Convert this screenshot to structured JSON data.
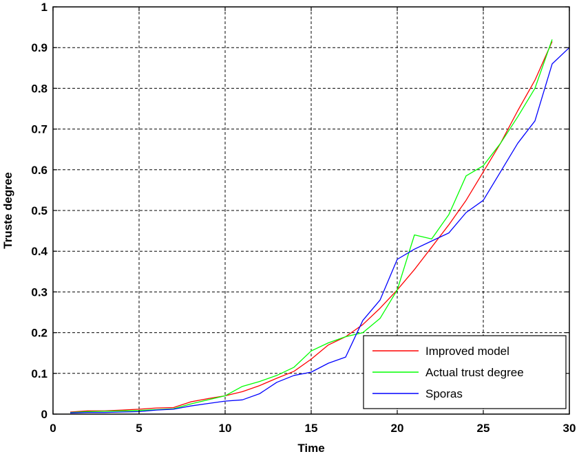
{
  "chart_data": {
    "type": "line",
    "title": "",
    "xlabel": "Time",
    "ylabel": "Truste degree",
    "xlim": [
      0,
      30
    ],
    "ylim": [
      0,
      1
    ],
    "xticks": [
      "0",
      "5",
      "10",
      "15",
      "20",
      "25",
      "30"
    ],
    "yticks": [
      "0",
      "0.1",
      "0.2",
      "0.3",
      "0.4",
      "0.5",
      "0.6",
      "0.7",
      "0.8",
      "0.9",
      "1"
    ],
    "grid": true,
    "legend_position": "bottom-right",
    "x": [
      1,
      2,
      3,
      4,
      5,
      6,
      7,
      8,
      9,
      10,
      11,
      12,
      13,
      14,
      15,
      16,
      17,
      18,
      19,
      20,
      21,
      22,
      23,
      24,
      25,
      26,
      27,
      28,
      29,
      30
    ],
    "series": [
      {
        "name": "Improved model",
        "color": "#ff0000",
        "values": [
          0.005,
          0.008,
          0.008,
          0.01,
          0.012,
          0.015,
          0.016,
          0.03,
          0.038,
          0.045,
          0.055,
          0.07,
          0.088,
          0.105,
          0.135,
          0.17,
          0.19,
          0.22,
          0.26,
          0.305,
          0.355,
          0.41,
          0.465,
          0.525,
          0.595,
          0.665,
          0.745,
          0.82,
          0.915,
          null
        ]
      },
      {
        "name": "Actual trust degree",
        "color": "#00ff00",
        "values": [
          0.004,
          0.006,
          0.007,
          0.008,
          0.009,
          0.011,
          0.013,
          0.025,
          0.035,
          0.045,
          0.068,
          0.08,
          0.095,
          0.115,
          0.155,
          0.175,
          0.19,
          0.2,
          0.235,
          0.305,
          0.44,
          0.43,
          0.49,
          0.585,
          0.61,
          0.665,
          0.73,
          0.8,
          0.92,
          null
        ]
      },
      {
        "name": "Sporas",
        "color": "#0000ff",
        "values": [
          0.003,
          0.004,
          0.004,
          0.005,
          0.006,
          0.01,
          0.012,
          0.02,
          0.026,
          0.032,
          0.035,
          0.05,
          0.078,
          0.095,
          0.103,
          0.125,
          0.14,
          0.23,
          0.28,
          0.38,
          0.405,
          0.425,
          0.445,
          0.495,
          0.525,
          0.595,
          0.665,
          0.72,
          0.86,
          0.9
        ]
      }
    ]
  }
}
